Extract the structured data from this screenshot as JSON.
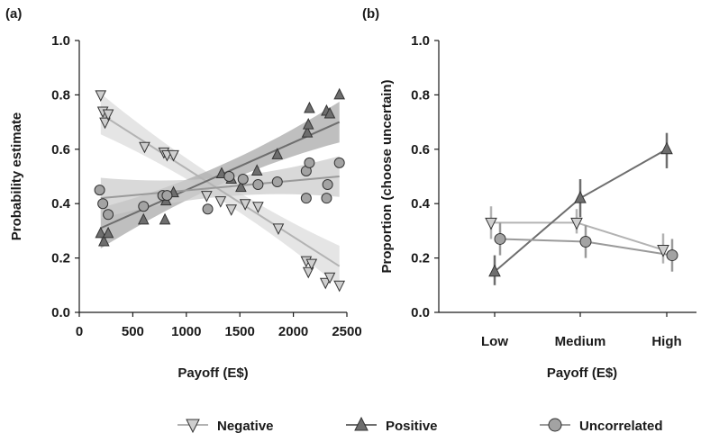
{
  "colors": {
    "negative_fill": "#cfcfcf",
    "negative_line": "#b3b3b3",
    "positive_fill": "#6e6e6e",
    "positive_line": "#6e6e6e",
    "uncorrelated_fill": "#a3a3a3",
    "uncorrelated_line": "#9a9a9a",
    "band_negative": "#dcdcdc",
    "band_positive": "#aaaaaa",
    "band_uncorrelated": "#cccccc",
    "axis": "#1a1a1a"
  },
  "chart_data": [
    {
      "panel_label": "(a)",
      "type": "scatter",
      "xlabel": "Payoff (E$)",
      "ylabel": "Probability estimate",
      "xlim": [
        0,
        2500
      ],
      "ylim": [
        0,
        1
      ],
      "xticks": [
        "0",
        "500",
        "1000",
        "1500",
        "2000",
        "2500"
      ],
      "yticks": [
        "0.0",
        "0.2",
        "0.4",
        "0.6",
        "0.8",
        "1.0"
      ],
      "series": [
        {
          "name": "Negative",
          "marker": "triangle-down",
          "x": [
            200,
            220,
            240,
            270,
            610,
            790,
            820,
            880,
            1190,
            1320,
            1420,
            1550,
            1670,
            1860,
            2120,
            2140,
            2170,
            2300,
            2340,
            2430
          ],
          "y": [
            0.8,
            0.74,
            0.7,
            0.73,
            0.61,
            0.59,
            0.58,
            0.58,
            0.43,
            0.41,
            0.38,
            0.4,
            0.39,
            0.31,
            0.19,
            0.15,
            0.18,
            0.11,
            0.13,
            0.1
          ],
          "fit": {
            "x": [
              200,
              2430
            ],
            "y": [
              0.73,
              0.17
            ]
          }
        },
        {
          "name": "Positive",
          "marker": "triangle-up",
          "x": [
            200,
            230,
            270,
            600,
            800,
            810,
            880,
            1330,
            1420,
            1510,
            1660,
            1850,
            2130,
            2140,
            2150,
            2310,
            2340,
            2430
          ],
          "y": [
            0.29,
            0.26,
            0.29,
            0.34,
            0.34,
            0.41,
            0.44,
            0.51,
            0.49,
            0.46,
            0.52,
            0.58,
            0.66,
            0.69,
            0.75,
            0.74,
            0.73,
            0.8
          ],
          "fit": {
            "x": [
              200,
              2430
            ],
            "y": [
              0.31,
              0.7
            ]
          }
        },
        {
          "name": "Uncorrelated",
          "marker": "circle",
          "x": [
            190,
            220,
            270,
            600,
            780,
            820,
            1200,
            1400,
            1530,
            1670,
            1850,
            2120,
            2120,
            2150,
            2310,
            2320,
            2430
          ],
          "y": [
            0.45,
            0.4,
            0.36,
            0.39,
            0.43,
            0.43,
            0.38,
            0.5,
            0.49,
            0.47,
            0.48,
            0.42,
            0.52,
            0.55,
            0.42,
            0.47,
            0.55
          ],
          "fit": {
            "x": [
              200,
              2430
            ],
            "y": [
              0.42,
              0.5
            ]
          }
        }
      ]
    },
    {
      "panel_label": "(b)",
      "type": "line",
      "xlabel": "Payoff (E$)",
      "ylabel": "Proportion (choose uncertain)",
      "categories": [
        "Low",
        "Medium",
        "High"
      ],
      "ylim": [
        0,
        1
      ],
      "yticks": [
        "0.0",
        "0.2",
        "0.4",
        "0.6",
        "0.8",
        "1.0"
      ],
      "series": [
        {
          "name": "Negative",
          "marker": "triangle-down",
          "values": [
            0.33,
            0.33,
            0.23
          ],
          "err_low": [
            0.27,
            0.29,
            0.18
          ],
          "err_high": [
            0.39,
            0.38,
            0.29
          ]
        },
        {
          "name": "Positive",
          "marker": "triangle-up",
          "values": [
            0.15,
            0.42,
            0.6
          ],
          "err_low": [
            0.1,
            0.35,
            0.53
          ],
          "err_high": [
            0.21,
            0.49,
            0.66
          ]
        },
        {
          "name": "Uncorrelated",
          "marker": "circle",
          "values": [
            0.27,
            0.26,
            0.21
          ],
          "err_low": [
            0.21,
            0.2,
            0.15
          ],
          "err_high": [
            0.33,
            0.32,
            0.27
          ]
        }
      ]
    }
  ],
  "legend": {
    "items": [
      {
        "label": "Negative",
        "marker": "triangle-down"
      },
      {
        "label": "Positive",
        "marker": "triangle-up"
      },
      {
        "label": "Uncorrelated",
        "marker": "circle"
      }
    ]
  }
}
